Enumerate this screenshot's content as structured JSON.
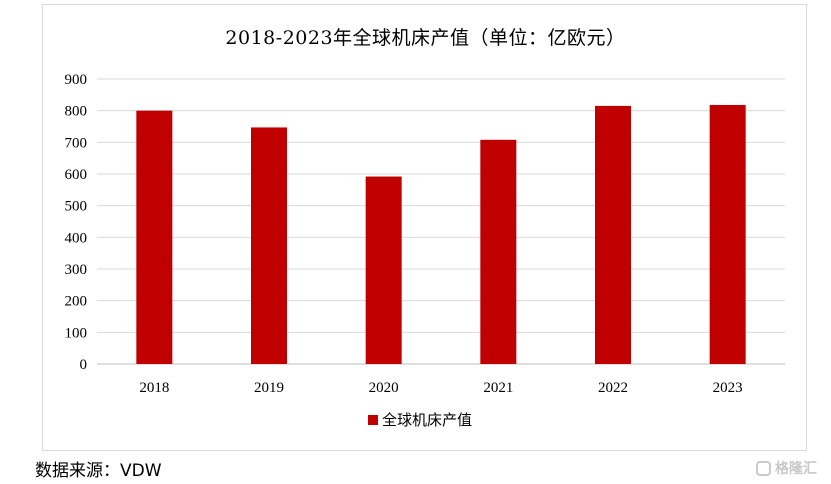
{
  "chart_data": {
    "type": "bar",
    "title": "2018-2023年全球机床产值（单位：亿欧元）",
    "categories": [
      "2018",
      "2019",
      "2020",
      "2021",
      "2022",
      "2023"
    ],
    "series": [
      {
        "name": "全球机床产值",
        "values": [
          800,
          747,
          592,
          708,
          815,
          818
        ]
      }
    ],
    "ylim": [
      0,
      900
    ],
    "yticks": [
      0,
      100,
      200,
      300,
      400,
      500,
      600,
      700,
      800,
      900
    ],
    "grid": true,
    "legend_position": "bottom",
    "bar_color": "#c00000",
    "grid_color": "#d9d9d9"
  },
  "source": {
    "label": "数据来源：",
    "value": "VDW"
  },
  "watermark": {
    "text": "格隆汇"
  }
}
